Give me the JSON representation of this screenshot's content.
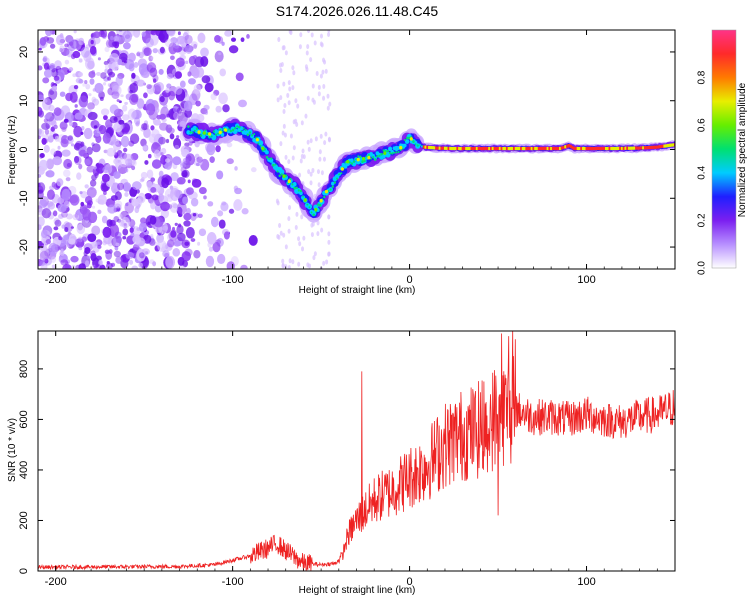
{
  "title": "S174.2026.026.11.48.C45",
  "chart_data": [
    {
      "type": "heatmap",
      "name": "spectrogram",
      "xlabel": "Height of straight line (km)",
      "ylabel": "Frequency (Hz)",
      "xlim": [
        -210,
        150
      ],
      "ylim": [
        -24.5,
        24.5
      ],
      "xticks": [
        -200,
        -100,
        0,
        100
      ],
      "yticks": [
        -20,
        -10,
        0,
        10,
        20
      ],
      "ridge": {
        "x": [
          -125,
          -118,
          -110,
          -104,
          -98,
          -92,
          -86,
          -80,
          -74,
          -68,
          -62,
          -58,
          -55,
          -52,
          -48,
          -44,
          -40,
          -35,
          -28,
          -20,
          -12,
          -6,
          -2,
          0,
          3,
          8,
          15,
          25,
          40,
          55,
          70,
          85,
          90,
          93,
          100,
          115,
          130,
          140,
          150
        ],
        "y": [
          4,
          3.5,
          3,
          4,
          4.5,
          3.5,
          2,
          -1.5,
          -4.5,
          -6.5,
          -8.5,
          -11,
          -13,
          -12,
          -9,
          -7.5,
          -5,
          -2.5,
          -2,
          -1.5,
          -0.5,
          0,
          1.5,
          2.5,
          1.5,
          0.5,
          0.3,
          0.2,
          0.2,
          0.2,
          0.2,
          0.2,
          0.8,
          0.2,
          0.2,
          0.2,
          0.3,
          0.5,
          1
        ]
      },
      "colorbar": {
        "label": "Normalized spectral amplitude",
        "range": [
          0,
          1
        ],
        "ticks": [
          "0.0",
          "0.2",
          "0.4",
          "0.6",
          "0.8"
        ],
        "colors": [
          "#ffffff",
          "#b78fff",
          "#7b1ff0",
          "#1f1fff",
          "#00ccff",
          "#00e070",
          "#66ee00",
          "#e8ee00",
          "#ff7a00",
          "#ff2a2a",
          "#ff3388"
        ]
      }
    },
    {
      "type": "line",
      "name": "snr",
      "xlabel": "Height of straight line (km)",
      "ylabel": "SNR (10 * v/v)",
      "xlim": [
        -210,
        150
      ],
      "ylim": [
        0,
        950
      ],
      "xticks": [
        -200,
        -100,
        0,
        100
      ],
      "yticks": [
        0,
        200,
        400,
        600,
        800
      ],
      "color": "#ee2222",
      "baseline": {
        "x": [
          -210,
          -130,
          -110,
          -90,
          -80,
          -75,
          -70,
          -60,
          -50,
          -42,
          -38,
          -35,
          -30,
          -25,
          -20,
          -10,
          0,
          10,
          20,
          30,
          40,
          50,
          60,
          70,
          80,
          90,
          100,
          110,
          120,
          130,
          140,
          150
        ],
        "y": [
          15,
          18,
          25,
          60,
          90,
          110,
          80,
          30,
          25,
          30,
          60,
          140,
          200,
          240,
          280,
          320,
          370,
          420,
          500,
          540,
          560,
          620,
          640,
          610,
          610,
          600,
          620,
          600,
          590,
          610,
          620,
          650
        ]
      },
      "peaks": {
        "x": [
          -27,
          52,
          56,
          50
        ],
        "y": [
          790,
          940,
          930,
          220
        ]
      }
    }
  ]
}
